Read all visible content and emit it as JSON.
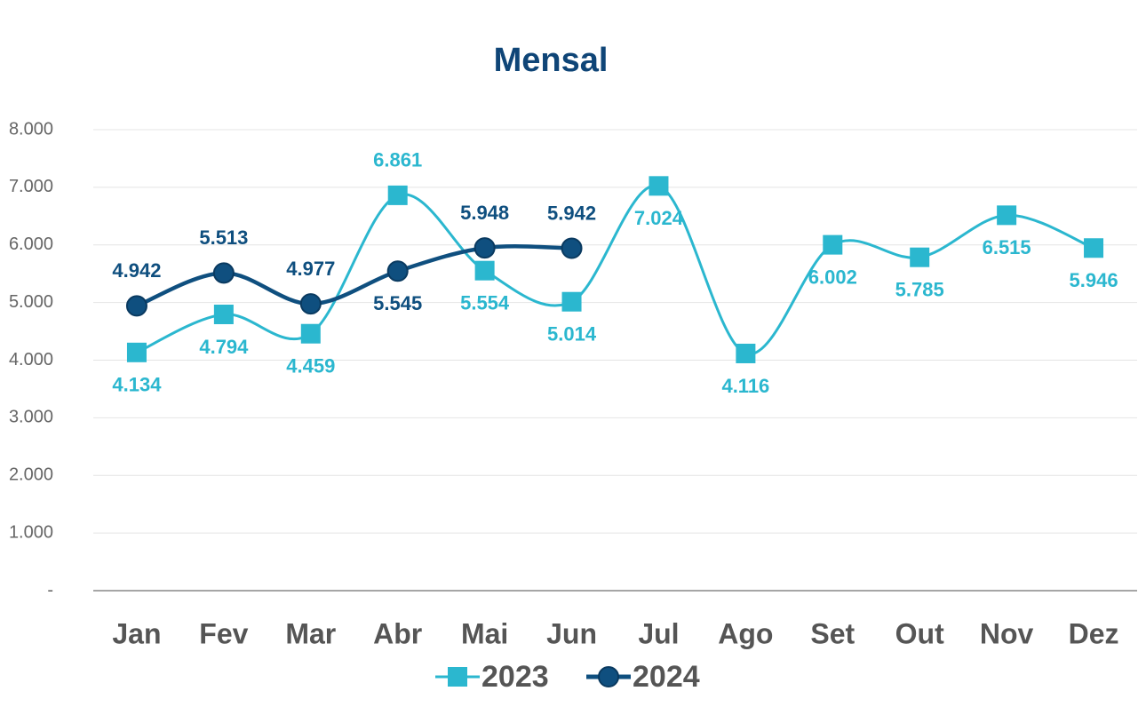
{
  "chart_data": {
    "type": "line",
    "title": "Mensal",
    "categories": [
      "Jan",
      "Fev",
      "Mar",
      "Abr",
      "Mai",
      "Jun",
      "Jul",
      "Ago",
      "Set",
      "Out",
      "Nov",
      "Dez"
    ],
    "series": [
      {
        "name": "2023",
        "color": "#2bb7cf",
        "marker": "square",
        "values": [
          4134,
          4794,
          4459,
          6861,
          5554,
          5014,
          7024,
          4116,
          6002,
          5785,
          6515,
          5946
        ],
        "value_labels": [
          "4.134",
          "4.794",
          "4.459",
          "6.861",
          "5.554",
          "5.014",
          "7.024",
          "4.116",
          "6.002",
          "5.785",
          "6.515",
          "5.946"
        ]
      },
      {
        "name": "2024",
        "color": "#0f4f7f",
        "marker": "circle",
        "values": [
          4942,
          5513,
          4977,
          5545,
          5948,
          5942,
          null,
          null,
          null,
          null,
          null,
          null
        ],
        "value_labels": [
          "4.942",
          "5.513",
          "4.977",
          "5.545",
          "5.948",
          "5.942",
          null,
          null,
          null,
          null,
          null,
          null
        ]
      }
    ],
    "ylim": [
      0,
      8000
    ],
    "yticks": [
      {
        "value": 0,
        "label": "-"
      },
      {
        "value": 1000,
        "label": "1.000"
      },
      {
        "value": 2000,
        "label": "2.000"
      },
      {
        "value": 3000,
        "label": "3.000"
      },
      {
        "value": 4000,
        "label": "4.000"
      },
      {
        "value": 5000,
        "label": "5.000"
      },
      {
        "value": 6000,
        "label": "6.000"
      },
      {
        "value": 7000,
        "label": "7.000"
      },
      {
        "value": 8000,
        "label": "8.000"
      }
    ],
    "grid": true,
    "legend": "bottom"
  }
}
